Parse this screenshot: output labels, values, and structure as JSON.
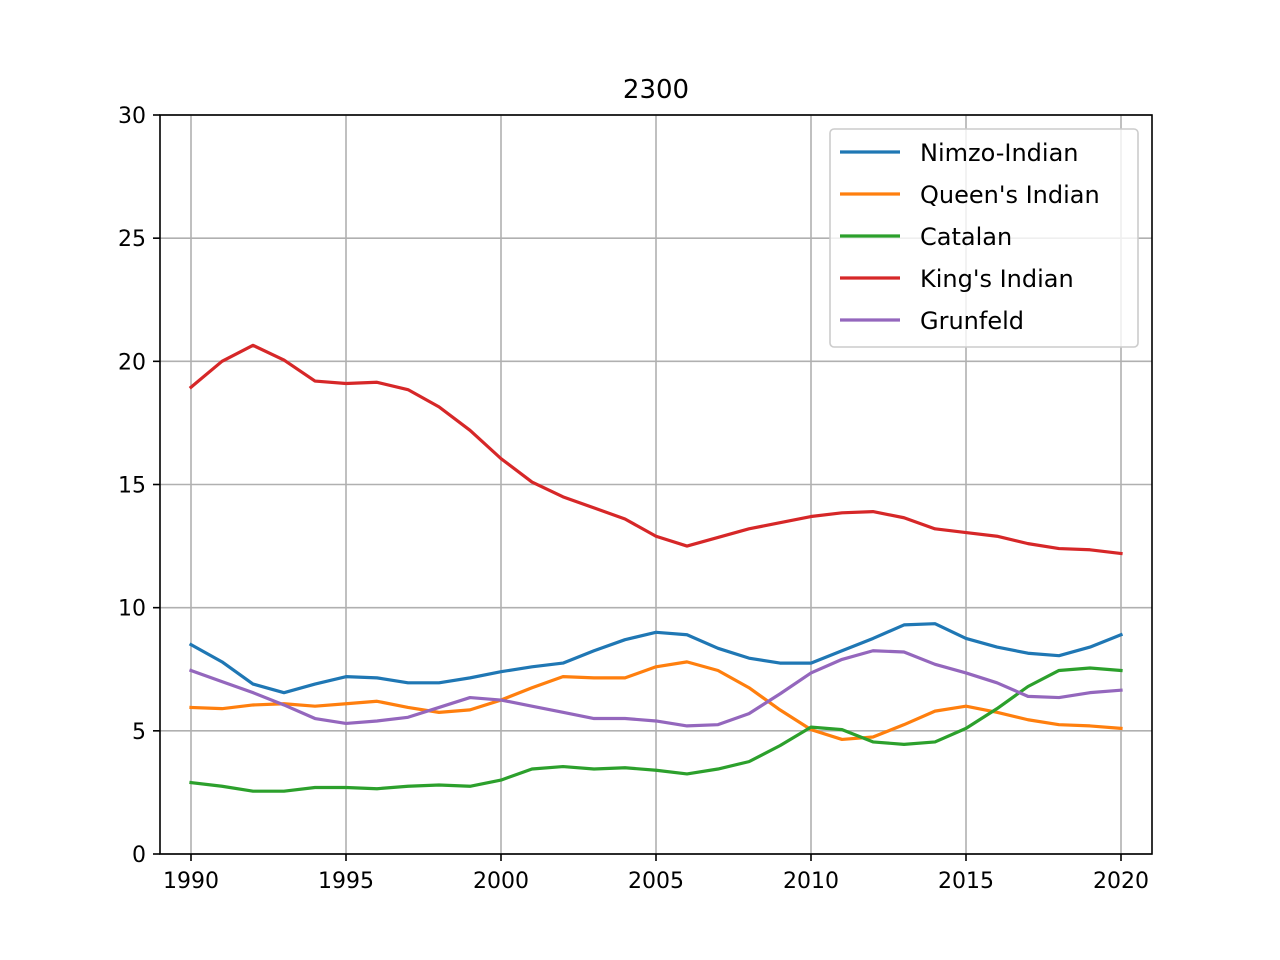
{
  "chart_data": {
    "type": "line",
    "title": "2300",
    "xlabel": "",
    "ylabel": "",
    "xlim": [
      1989,
      2021
    ],
    "ylim": [
      0,
      30
    ],
    "xticks": [
      1990,
      1995,
      2000,
      2005,
      2010,
      2015,
      2020
    ],
    "yticks": [
      0,
      5,
      10,
      15,
      20,
      25,
      30
    ],
    "grid": true,
    "legend_position": "top-right",
    "x": [
      1990,
      1991,
      1992,
      1993,
      1994,
      1995,
      1996,
      1997,
      1998,
      1999,
      2000,
      2001,
      2002,
      2003,
      2004,
      2005,
      2006,
      2007,
      2008,
      2009,
      2010,
      2011,
      2012,
      2013,
      2014,
      2015,
      2016,
      2017,
      2018,
      2019,
      2020
    ],
    "series": [
      {
        "name": "Nimzo-Indian",
        "color": "#1f77b4",
        "values": [
          8.5,
          7.8,
          6.9,
          6.55,
          6.9,
          7.2,
          7.15,
          6.95,
          6.95,
          7.15,
          7.4,
          7.6,
          7.75,
          8.25,
          8.7,
          9.0,
          8.9,
          8.35,
          7.95,
          7.75,
          7.75,
          8.25,
          8.75,
          9.3,
          9.35,
          8.75,
          8.4,
          8.15,
          8.05,
          8.4,
          8.9
        ]
      },
      {
        "name": "Queen's Indian",
        "color": "#ff7f0e",
        "values": [
          5.95,
          5.9,
          6.05,
          6.1,
          6.0,
          6.1,
          6.2,
          5.95,
          5.75,
          5.85,
          6.25,
          6.75,
          7.2,
          7.15,
          7.15,
          7.6,
          7.8,
          7.45,
          6.75,
          5.85,
          5.05,
          4.65,
          4.75,
          5.25,
          5.8,
          6.0,
          5.75,
          5.45,
          5.25,
          5.2,
          5.1
        ]
      },
      {
        "name": "Catalan",
        "color": "#2ca02c",
        "values": [
          2.9,
          2.75,
          2.55,
          2.55,
          2.7,
          2.7,
          2.65,
          2.75,
          2.8,
          2.75,
          3.0,
          3.45,
          3.55,
          3.45,
          3.5,
          3.4,
          3.25,
          3.45,
          3.75,
          4.4,
          5.15,
          5.05,
          4.55,
          4.45,
          4.55,
          5.1,
          5.9,
          6.8,
          7.45,
          7.55,
          7.45
        ]
      },
      {
        "name": "King's Indian",
        "color": "#d62728",
        "values": [
          18.95,
          20.0,
          20.65,
          20.05,
          19.2,
          19.1,
          19.15,
          18.85,
          18.15,
          17.2,
          16.05,
          15.1,
          14.5,
          14.05,
          13.6,
          12.9,
          12.5,
          12.85,
          13.2,
          13.45,
          13.7,
          13.85,
          13.9,
          13.65,
          13.2,
          13.05,
          12.9,
          12.6,
          12.4,
          12.35,
          12.2
        ]
      },
      {
        "name": "Grunfeld",
        "color": "#9467bd",
        "values": [
          7.45,
          7.0,
          6.55,
          6.05,
          5.5,
          5.3,
          5.4,
          5.55,
          5.95,
          6.35,
          6.25,
          6.0,
          5.75,
          5.5,
          5.5,
          5.4,
          5.2,
          5.25,
          5.7,
          6.5,
          7.35,
          7.9,
          8.25,
          8.2,
          7.7,
          7.35,
          6.95,
          6.4,
          6.35,
          6.55,
          6.65
        ]
      }
    ]
  }
}
